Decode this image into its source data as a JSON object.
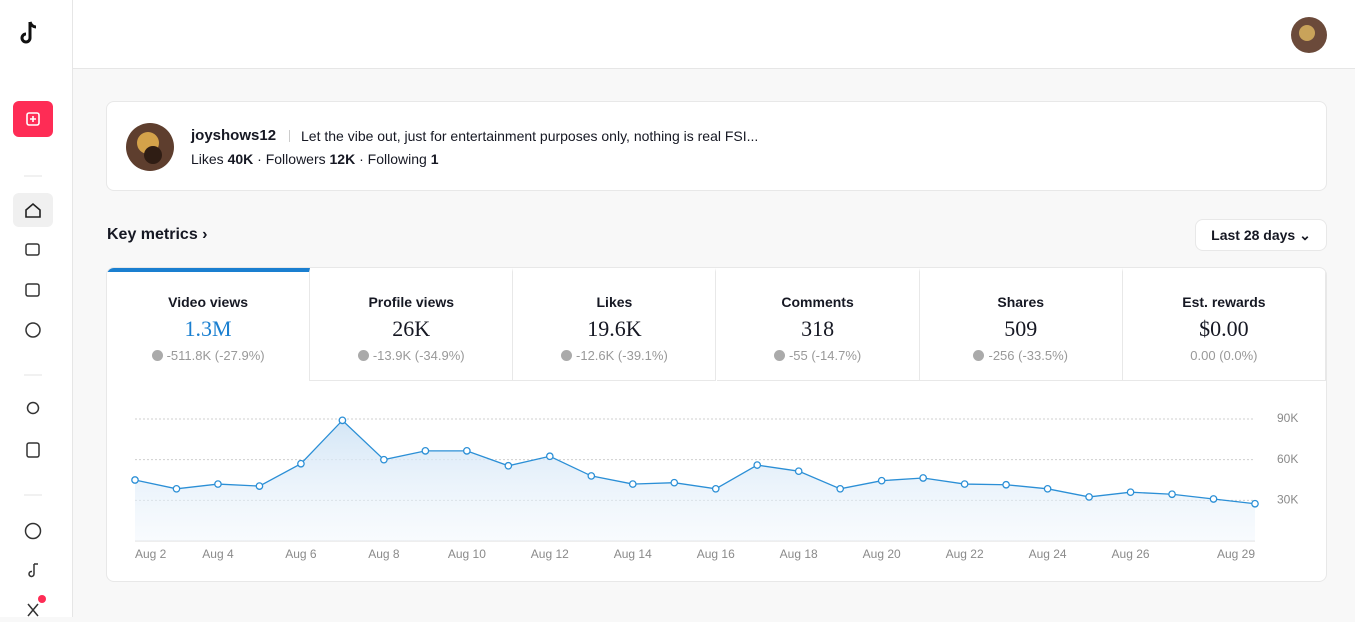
{
  "profile": {
    "username": "joyshows12",
    "bio": "Let the vibe out, just for entertainment purposes only, nothing is real FSI...",
    "likes_label": "Likes",
    "likes": "40K",
    "followers_label": "Followers",
    "followers": "12K",
    "following_label": "Following",
    "following": "1"
  },
  "key_metrics": {
    "title": "Key metrics",
    "range": "Last 28 days",
    "tabs": [
      {
        "label": "Video views",
        "value": "1.3M",
        "change": "-511.8K (-27.9%)"
      },
      {
        "label": "Profile views",
        "value": "26K",
        "change": "-13.9K (-34.9%)"
      },
      {
        "label": "Likes",
        "value": "19.6K",
        "change": "-12.6K (-39.1%)"
      },
      {
        "label": "Comments",
        "value": "318",
        "change": "-55 (-14.7%)"
      },
      {
        "label": "Shares",
        "value": "509",
        "change": "-256 (-33.5%)"
      },
      {
        "label": "Est. rewards",
        "value": "$0.00",
        "change": "0.00 (0.0%)"
      }
    ]
  },
  "chart_data": {
    "type": "line",
    "categories": [
      "Aug 2",
      null,
      "Aug 4",
      null,
      "Aug 6",
      null,
      "Aug 8",
      null,
      "Aug 10",
      null,
      "Aug 12",
      null,
      "Aug 14",
      null,
      "Aug 16",
      null,
      "Aug 18",
      null,
      "Aug 20",
      null,
      "Aug 22",
      null,
      "Aug 24",
      null,
      "Aug 26",
      null,
      null,
      "Aug 29"
    ],
    "values": [
      45000,
      38500,
      42000,
      40500,
      57000,
      89000,
      60000,
      66500,
      66500,
      55500,
      62500,
      48000,
      42000,
      43000,
      38500,
      56000,
      51500,
      38500,
      44500,
      46500,
      42000,
      41500,
      38500,
      32500,
      36000,
      34500,
      31000,
      27500
    ],
    "color": "#2b8fd6",
    "ylim": [
      0,
      90000
    ],
    "yticks": [
      {
        "value": 30000,
        "label": "30K"
      },
      {
        "value": 60000,
        "label": "60K"
      },
      {
        "value": 90000,
        "label": "90K"
      }
    ],
    "grid": true
  }
}
